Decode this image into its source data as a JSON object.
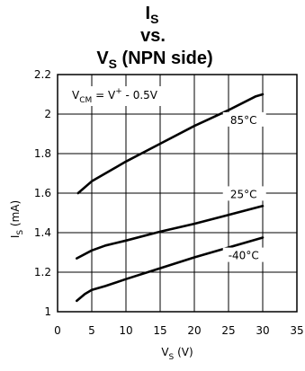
{
  "chart_data": {
    "type": "line",
    "title": {
      "line1_main": "I",
      "line1_sub": "S",
      "line2": "vs.",
      "line3_main": "V",
      "line3_sub": "S",
      "line3_rest": " (NPN side)"
    },
    "xlabel": {
      "main": "V",
      "sub": "S",
      "rest": " (V)"
    },
    "ylabel": {
      "main": "I",
      "sub": "S",
      "rest": " (mA)"
    },
    "xlim": [
      0,
      35
    ],
    "ylim": [
      1,
      2.2
    ],
    "xticks": [
      0,
      5,
      10,
      15,
      20,
      25,
      30,
      35
    ],
    "yticks": [
      1,
      1.2,
      1.4,
      1.6,
      1.8,
      2,
      2.2
    ],
    "xtick_labels": [
      "0",
      "5",
      "10",
      "15",
      "20",
      "25",
      "30",
      "35"
    ],
    "ytick_labels": [
      "1",
      "1.2",
      "1.4",
      "1.6",
      "1.8",
      "2",
      "2.2"
    ],
    "grid": true,
    "annotation": {
      "v_main": "V",
      "v_sub": "CM",
      "rest": " = V",
      "sup": "+",
      "tail": " - 0.5V"
    },
    "series": [
      {
        "name": "85°C",
        "x": [
          3,
          5,
          10,
          15,
          20,
          25,
          29,
          30
        ],
        "y": [
          1.6,
          1.66,
          1.76,
          1.85,
          1.94,
          2.02,
          2.09,
          2.1
        ]
      },
      {
        "name": "25°C",
        "x": [
          2.8,
          5,
          7,
          10,
          15,
          20,
          25,
          30
        ],
        "y": [
          1.27,
          1.31,
          1.335,
          1.36,
          1.405,
          1.445,
          1.49,
          1.535
        ]
      },
      {
        "name": "-40°C",
        "x": [
          2.8,
          4,
          5,
          7,
          10,
          15,
          20,
          25,
          30
        ],
        "y": [
          1.055,
          1.09,
          1.11,
          1.13,
          1.165,
          1.22,
          1.275,
          1.325,
          1.375
        ]
      }
    ]
  }
}
